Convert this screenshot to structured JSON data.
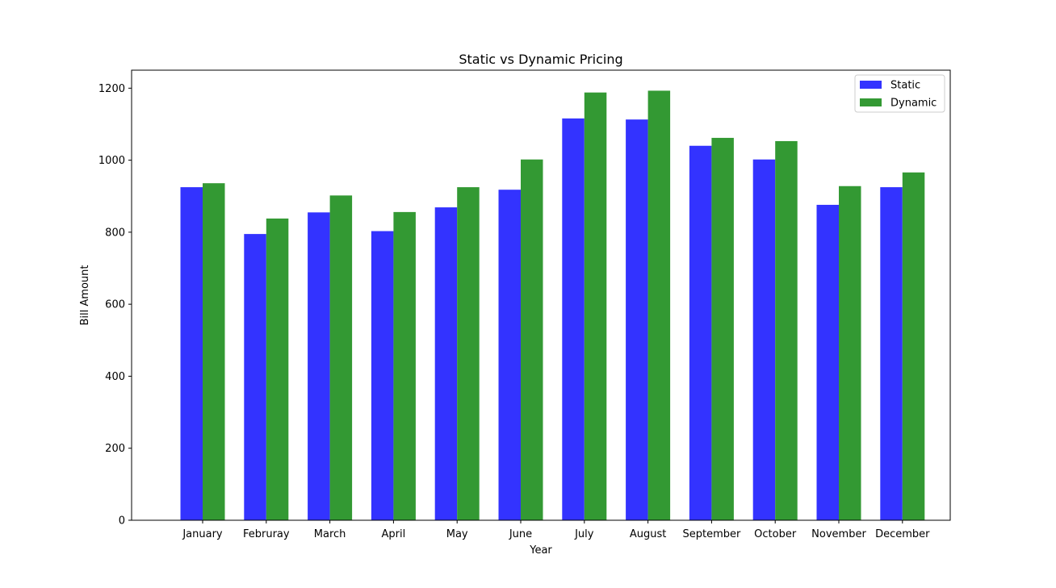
{
  "chart_data": {
    "type": "bar",
    "title": "Static vs Dynamic Pricing",
    "xlabel": "Year",
    "ylabel": "Bill Amount",
    "categories": [
      "January",
      "Februray",
      "March",
      "April",
      "May",
      "June",
      "July",
      "August",
      "September",
      "October",
      "November",
      "December"
    ],
    "series": [
      {
        "name": "Static",
        "color": "#3333ff",
        "values": [
          925,
          795,
          855,
          803,
          869,
          918,
          1116,
          1113,
          1040,
          1002,
          876,
          925
        ]
      },
      {
        "name": "Dynamic",
        "color": "#339933",
        "values": [
          936,
          838,
          902,
          856,
          925,
          1002,
          1188,
          1193,
          1062,
          1053,
          928,
          966
        ]
      }
    ],
    "ylim": [
      0,
      1250
    ],
    "yticks": [
      0,
      200,
      400,
      600,
      800,
      1000,
      1200
    ],
    "grid": false,
    "legend_position": "top-right"
  }
}
